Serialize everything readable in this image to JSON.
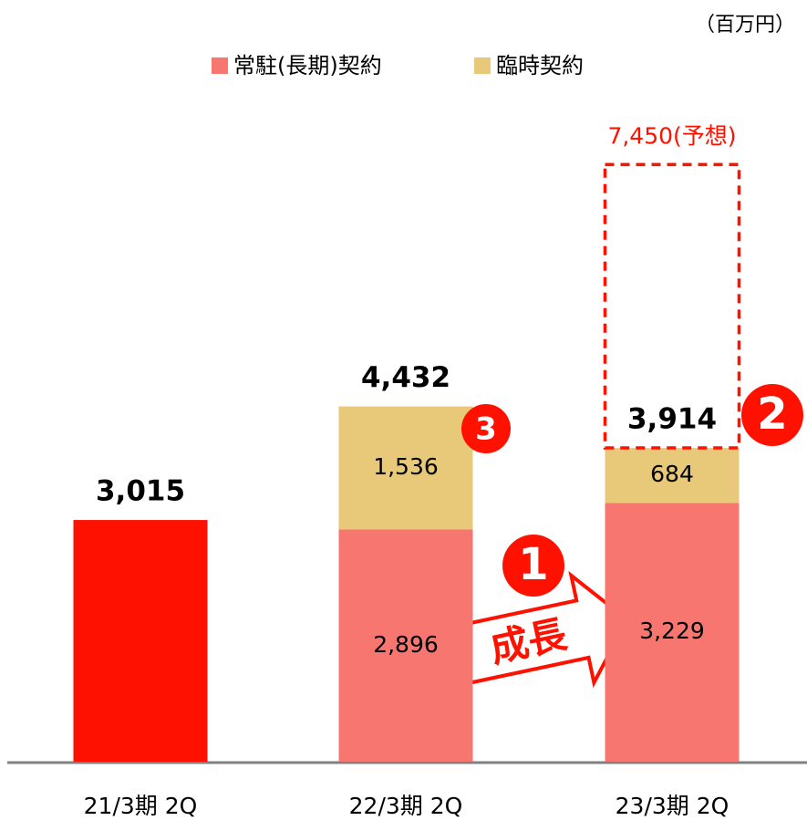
{
  "chart_data": {
    "type": "stacked-bar",
    "unit": "（百万円）",
    "categories": [
      "21/3期 2Q",
      "22/3期 2Q",
      "23/3期 2Q"
    ],
    "series": [
      {
        "name": "常駐(長期)契約",
        "color": "#f87670",
        "values": [
          null,
          2896,
          3229
        ],
        "value_labels": [
          null,
          "2,896",
          "3,229"
        ]
      },
      {
        "name": "臨時契約",
        "color": "#e8c97a",
        "values": [
          null,
          1536,
          684
        ],
        "value_labels": [
          null,
          "1,536",
          "684"
        ]
      }
    ],
    "totals": {
      "color": "#ff1100",
      "values": [
        3015,
        4432,
        3914
      ],
      "value_labels": [
        "3,015",
        "4,432",
        "3,914"
      ]
    },
    "forecast": {
      "category": 2,
      "value": 7450,
      "label": "7,450(予想)",
      "color": "#ff1100"
    },
    "annotations": [
      {
        "text": "1"
      },
      {
        "text": "2"
      },
      {
        "text": "3"
      },
      {
        "text": "成長"
      }
    ],
    "ylim": [
      0,
      8000
    ]
  }
}
